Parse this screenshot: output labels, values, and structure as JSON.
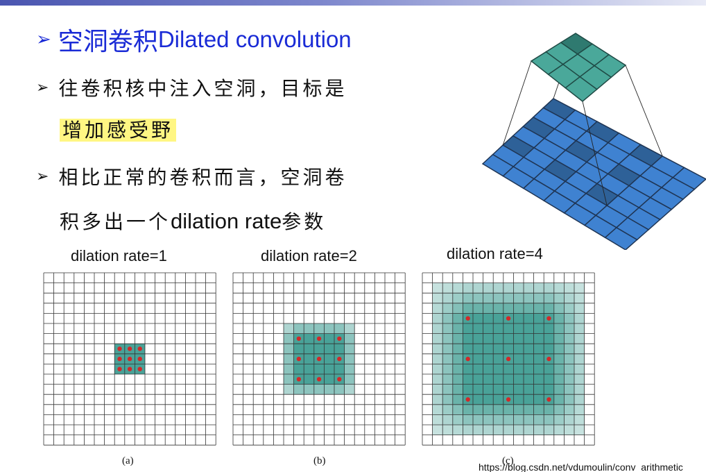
{
  "title": {
    "bullet": "➢",
    "cn": "空洞卷积",
    "en": "Dilated convolution"
  },
  "bullets": [
    {
      "bullet": "➢",
      "line1": "往卷积核中注入空洞，目标是",
      "highlight": "增加感受野"
    },
    {
      "bullet": "➢",
      "line1": "相比正常的卷积而言，空洞卷",
      "line2_pre": "积多出一个",
      "line2_en": "dilation rate",
      "line2_post": "参数"
    }
  ],
  "panels": [
    {
      "label": "dilation rate=1",
      "caption": "(a)"
    },
    {
      "label": "dilation rate=2",
      "caption": "(b)"
    },
    {
      "label": "dilation rate=4",
      "caption": "(c)"
    }
  ],
  "url": "https://blog.csdn.net/vdumoulin/conv_arithmetic",
  "colors": {
    "title": "#1a2bd6",
    "highlight": "#fff683",
    "teal": "#3f9d92",
    "blue": "#3f82d1",
    "dot": "#d02a2a"
  }
}
